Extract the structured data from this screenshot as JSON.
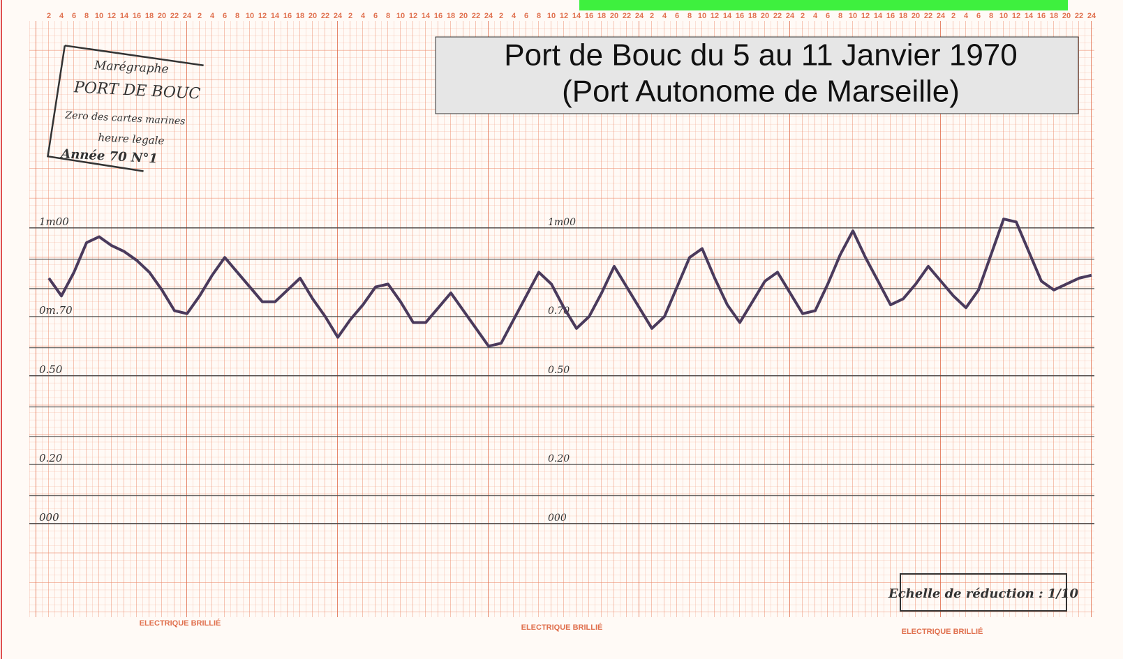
{
  "chart_data": {
    "type": "line",
    "title": "Port de Bouc  du 5 au 11 Janvier 1970",
    "subtitle": "(Port Autonome de Marseille)",
    "stamp": [
      "Marégraphe",
      "PORT DE BOUC",
      "Zero des cartes marines",
      "heure legale",
      "Année 70 N°1"
    ],
    "scale_note": "Echelle de réduction : 1/10",
    "paper_brand": [
      "ELECTRIQUE BRILLIÉ",
      "ELECTRIQUE BRILLIÉ",
      "ELECTRIQUE BRILLIÉ"
    ],
    "categories": [
      "2",
      "4",
      "6",
      "8",
      "10",
      "12",
      "14",
      "16",
      "18",
      "20",
      "22",
      "24",
      "2",
      "4",
      "6",
      "8",
      "10",
      "12",
      "14",
      "16",
      "18",
      "20",
      "22",
      "24",
      "2",
      "4",
      "6",
      "8",
      "10",
      "12",
      "14",
      "16",
      "18",
      "20",
      "22",
      "24",
      "2",
      "4",
      "6",
      "8",
      "10",
      "12",
      "14",
      "16",
      "18",
      "20",
      "22",
      "24",
      "2",
      "4",
      "6",
      "8",
      "10",
      "12",
      "14",
      "16",
      "18",
      "20",
      "22",
      "24",
      "2",
      "4",
      "6",
      "8",
      "10",
      "12",
      "14",
      "16",
      "18",
      "20",
      "22",
      "24",
      "2",
      "4",
      "6",
      "8",
      "10",
      "12",
      "14",
      "16",
      "18",
      "20",
      "22",
      "24"
    ],
    "series": [
      {
        "color": "#4a3a5c",
        "values": [
          0.83,
          0.77,
          0.85,
          0.95,
          0.97,
          0.94,
          0.92,
          0.89,
          0.85,
          0.79,
          0.72,
          0.71,
          0.77,
          0.84,
          0.9,
          0.85,
          0.8,
          0.75,
          0.75,
          0.79,
          0.83,
          0.76,
          0.7,
          0.63,
          0.69,
          0.74,
          0.8,
          0.81,
          0.75,
          0.68,
          0.68,
          0.73,
          0.78,
          0.72,
          0.66,
          0.6,
          0.61,
          0.69,
          0.77,
          0.85,
          0.81,
          0.73,
          0.66,
          0.7,
          0.78,
          0.87,
          0.8,
          0.73,
          0.66,
          0.7,
          0.8,
          0.9,
          0.93,
          0.83,
          0.74,
          0.68,
          0.75,
          0.82,
          0.85,
          0.78,
          0.71,
          0.72,
          0.81,
          0.91,
          0.99,
          0.9,
          0.82,
          0.74,
          0.76,
          0.81,
          0.87,
          0.82,
          0.77,
          0.73,
          0.79,
          0.91,
          1.03,
          1.02,
          0.92,
          0.82,
          0.79,
          0.81,
          0.83,
          0.84
        ]
      }
    ],
    "ylim": [
      -0.3,
      1.7
    ],
    "yticks": [
      {
        "value": 1,
        "label": "1m00"
      },
      {
        "value": 0.7,
        "label": "0m.70"
      },
      {
        "value": 0.5,
        "label": "0.50"
      },
      {
        "value": 0.2,
        "label": "0.20"
      },
      {
        "value": 0,
        "label": "000"
      }
    ],
    "inner_tick_labels": [
      "1m00",
      "0.70",
      "0.50",
      "0.20",
      "000"
    ],
    "grid": true
  }
}
